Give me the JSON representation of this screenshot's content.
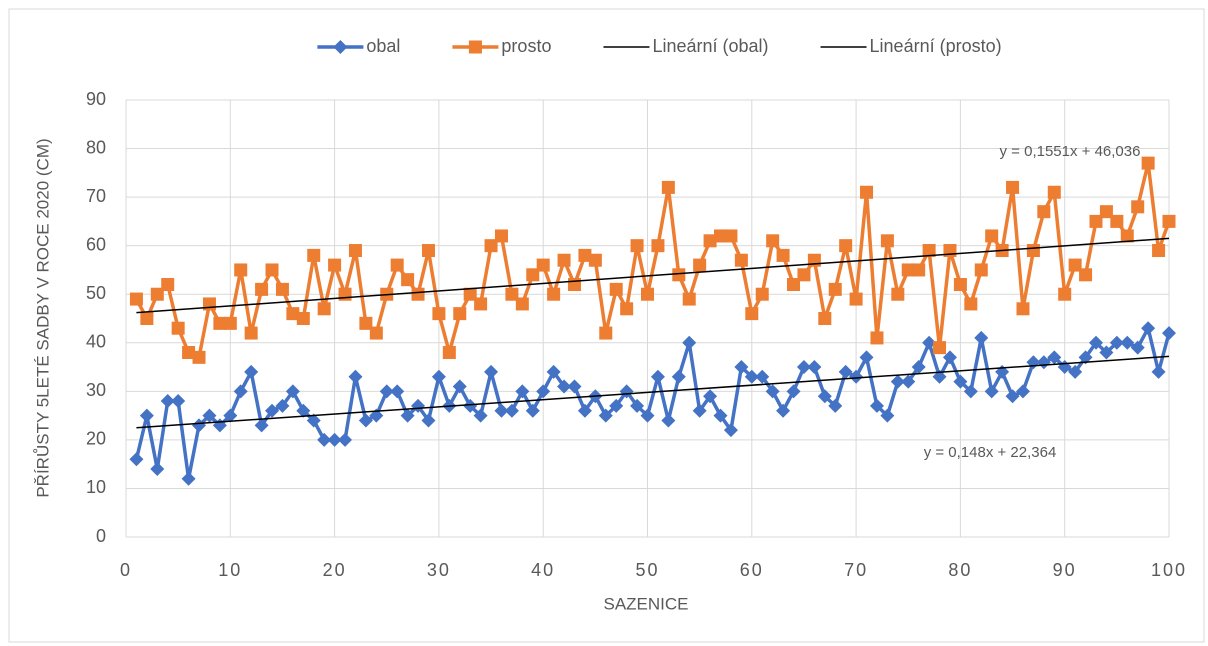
{
  "chart_data": {
    "type": "line",
    "xlabel": "SAZENICE",
    "ylabel": "PŘÍRŮSTY 5LETÉ SADBY V ROCE 2020  (CM)",
    "x": [
      1,
      2,
      3,
      4,
      5,
      6,
      7,
      8,
      9,
      10,
      11,
      12,
      13,
      14,
      15,
      16,
      17,
      18,
      19,
      20,
      21,
      22,
      23,
      24,
      25,
      26,
      27,
      28,
      29,
      30,
      31,
      32,
      33,
      34,
      35,
      36,
      37,
      38,
      39,
      40,
      41,
      42,
      43,
      44,
      45,
      46,
      47,
      48,
      49,
      50,
      51,
      52,
      53,
      54,
      55,
      56,
      57,
      58,
      59,
      60,
      61,
      62,
      63,
      64,
      65,
      66,
      67,
      68,
      69,
      70,
      71,
      72,
      73,
      74,
      75,
      76,
      77,
      78,
      79,
      80,
      81,
      82,
      83,
      84,
      85,
      86,
      87,
      88,
      89,
      90,
      91,
      92,
      93,
      94,
      95,
      96,
      97,
      98,
      99,
      100
    ],
    "series": [
      {
        "name": "obal",
        "color": "#4472c4",
        "marker": "diamond",
        "values": [
          16,
          25,
          14,
          28,
          28,
          12,
          23,
          25,
          23,
          25,
          30,
          34,
          23,
          26,
          27,
          30,
          26,
          24,
          20,
          20,
          20,
          33,
          24,
          25,
          30,
          30,
          25,
          27,
          24,
          33,
          27,
          31,
          27,
          25,
          34,
          26,
          26,
          30,
          26,
          30,
          34,
          31,
          31,
          26,
          29,
          25,
          27,
          30,
          27,
          25,
          33,
          24,
          33,
          40,
          26,
          29,
          25,
          22,
          35,
          33,
          33,
          30,
          26,
          30,
          35,
          35,
          29,
          27,
          34,
          33,
          37,
          27,
          25,
          32,
          32,
          35,
          40,
          33,
          37,
          32,
          30,
          41,
          30,
          34,
          29,
          30,
          36,
          36,
          37,
          35,
          34,
          37,
          40,
          38,
          40,
          40,
          39,
          43,
          34,
          42
        ]
      },
      {
        "name": "prosto",
        "color": "#ed7d31",
        "marker": "square",
        "values": [
          49,
          45,
          50,
          52,
          43,
          38,
          37,
          48,
          44,
          44,
          55,
          42,
          51,
          55,
          51,
          46,
          45,
          58,
          47,
          56,
          50,
          59,
          44,
          42,
          50,
          56,
          53,
          50,
          59,
          46,
          38,
          46,
          50,
          48,
          60,
          62,
          50,
          48,
          54,
          56,
          50,
          57,
          52,
          58,
          57,
          42,
          51,
          47,
          60,
          50,
          60,
          72,
          54,
          49,
          56,
          61,
          62,
          62,
          57,
          46,
          50,
          61,
          58,
          52,
          54,
          57,
          45,
          51,
          60,
          49,
          71,
          41,
          61,
          50,
          55,
          55,
          59,
          39,
          59,
          52,
          48,
          55,
          62,
          59,
          72,
          47,
          59,
          67,
          71,
          50,
          56,
          54,
          65,
          67,
          65,
          62,
          68,
          77,
          59,
          65
        ]
      },
      {
        "name": "Lineární (obal)",
        "color": "#000000",
        "trend": true,
        "x": [
          1,
          100
        ],
        "values": [
          22.5,
          37.2
        ]
      },
      {
        "name": "Lineární (prosto)",
        "color": "#000000",
        "trend": true,
        "x": [
          1,
          100
        ],
        "values": [
          46.2,
          61.5
        ]
      }
    ],
    "annotations": [
      "y = 0,1551x + 46,036",
      "y = 0,148x + 22,364"
    ],
    "xlim": [
      0,
      100
    ],
    "xticks": [
      0,
      10,
      20,
      30,
      40,
      50,
      60,
      70,
      80,
      90,
      100
    ],
    "ylim": [
      0,
      90
    ],
    "yticks": [
      0,
      10,
      20,
      30,
      40,
      50,
      60,
      70,
      80,
      90
    ],
    "grid": true,
    "legend": "top"
  }
}
